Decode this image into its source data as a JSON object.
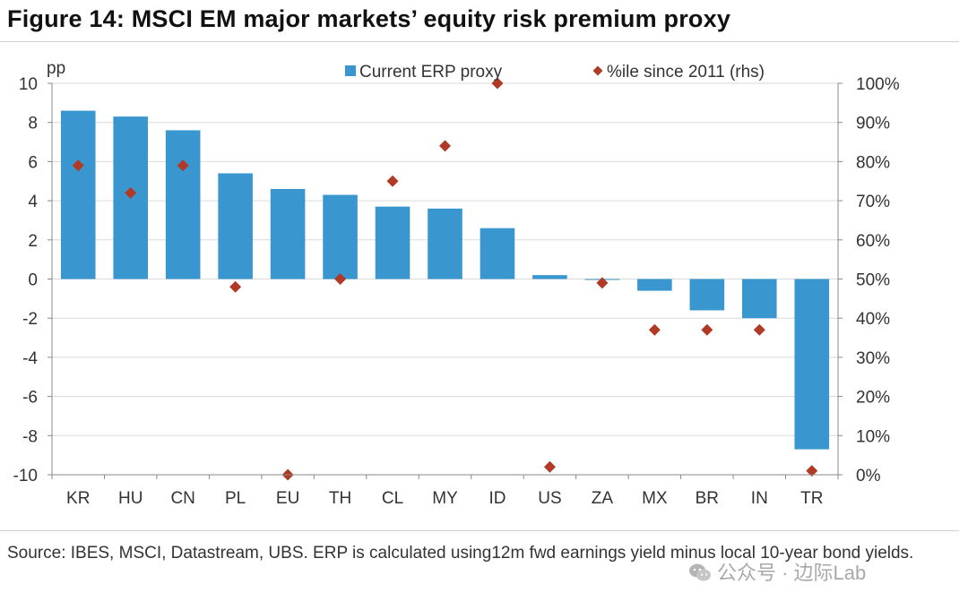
{
  "title": "Figure 14: MSCI EM major markets’ equity risk premium proxy",
  "source": "Source: IBES, MSCI, Datastream, UBS. ERP is calculated using12m fwd earnings yield minus local 10-year bond yields.",
  "watermark": "公众号 · 边际Lab",
  "colors": {
    "bar": "#3a96cf",
    "marker": "#b03a26",
    "grid": "#dadada",
    "axis": "#888888"
  },
  "chart_data": {
    "type": "bar",
    "title": "Figure 14: MSCI EM major markets’ equity risk premium proxy",
    "ylabel": "pp",
    "ylim": [
      -10,
      10
    ],
    "yticks": [
      10,
      8,
      6,
      4,
      2,
      0,
      -2,
      -4,
      -6,
      -8,
      -10
    ],
    "y2lim": [
      0,
      100
    ],
    "y2ticks": [
      "100%",
      "90%",
      "80%",
      "70%",
      "60%",
      "50%",
      "40%",
      "30%",
      "20%",
      "10%",
      "0%"
    ],
    "legend_position": "top",
    "categories": [
      "KR",
      "HU",
      "CN",
      "PL",
      "EU",
      "TH",
      "CL",
      "MY",
      "ID",
      "US",
      "ZA",
      "MX",
      "BR",
      "IN",
      "TR"
    ],
    "series": [
      {
        "name": "Current ERP proxy",
        "kind": "bar",
        "axis": "left",
        "values": [
          8.6,
          8.3,
          7.6,
          5.4,
          4.6,
          4.3,
          3.7,
          3.6,
          2.6,
          0.2,
          0.0,
          -0.6,
          -1.6,
          -2.0,
          -8.7
        ]
      },
      {
        "name": "%ile since 2011 (rhs)",
        "kind": "marker",
        "axis": "right",
        "values": [
          79,
          72,
          79,
          48,
          0,
          50,
          75,
          84,
          100,
          2,
          49,
          37,
          37,
          37,
          1
        ]
      }
    ]
  }
}
